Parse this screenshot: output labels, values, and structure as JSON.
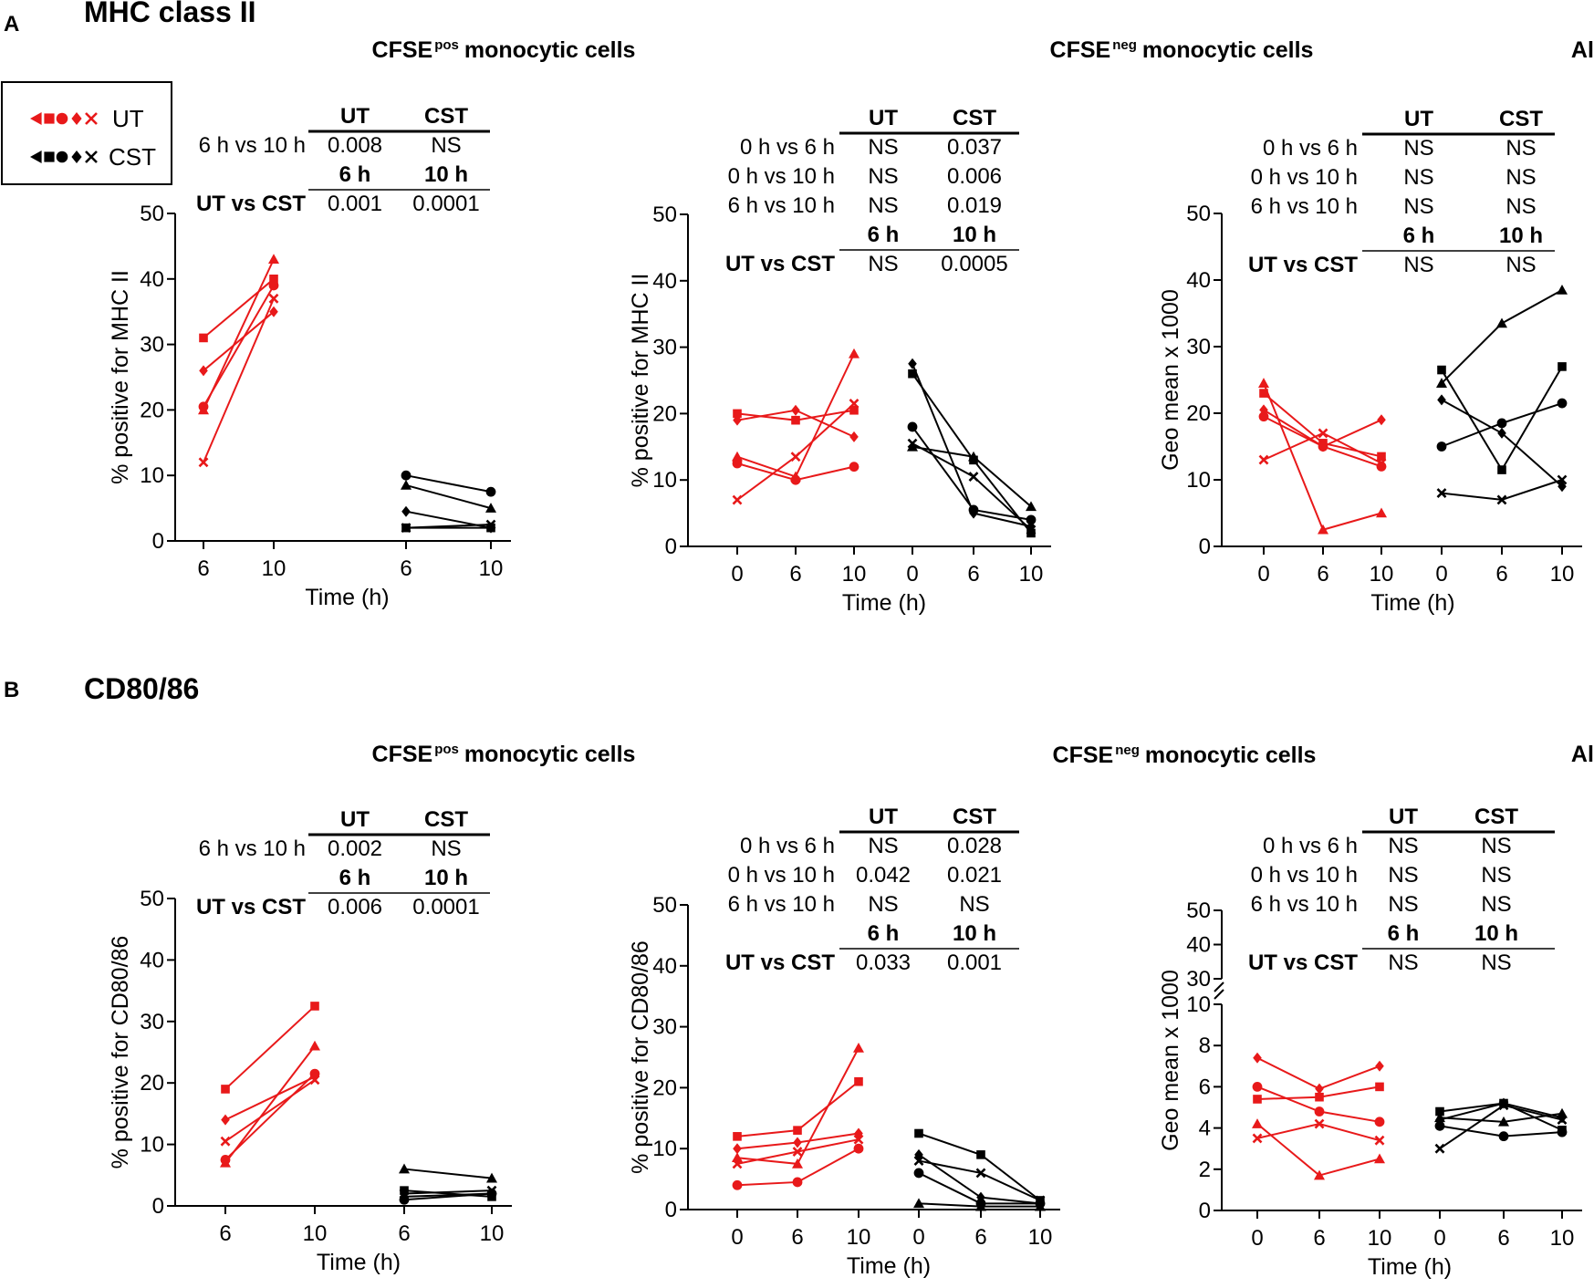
{
  "panels": {
    "A": {
      "letter": "A",
      "title": "MHC class II"
    },
    "B": {
      "letter": "B",
      "title": "CD80/86"
    }
  },
  "legend": {
    "items": [
      {
        "label": "UT",
        "symbols": [
          "triangle",
          "square",
          "circle",
          "diamond",
          "x"
        ],
        "color": "#e8191a"
      },
      {
        "label": "CST",
        "symbols": [
          "triangle",
          "square",
          "circle",
          "diamond",
          "x"
        ],
        "color": "#000000"
      }
    ]
  },
  "colors": {
    "UT": "#e8191a",
    "CST": "#000000"
  },
  "chart_data": [
    {
      "id": "A1",
      "type": "line",
      "panel": "A",
      "title": "CFSE",
      "title_sup": "pos",
      "title_rest": "monocytic cells",
      "ylabel": "% positive for MHC II",
      "xlabel": "Time (h)",
      "ylim": [
        0,
        50
      ],
      "yticks": [
        0,
        10,
        20,
        30,
        40,
        50
      ],
      "groups": [
        {
          "name": "UT",
          "color": "#e8191a",
          "x": [
            6,
            10
          ],
          "series": [
            {
              "marker": "triangle",
              "values": [
                20,
                43
              ]
            },
            {
              "marker": "square",
              "values": [
                31,
                40
              ]
            },
            {
              "marker": "circle",
              "values": [
                20.5,
                39
              ]
            },
            {
              "marker": "diamond",
              "values": [
                26,
                35
              ]
            },
            {
              "marker": "x",
              "values": [
                12,
                37
              ]
            }
          ]
        },
        {
          "name": "CST",
          "color": "#000000",
          "x": [
            6,
            10
          ],
          "series": [
            {
              "marker": "triangle",
              "values": [
                8.5,
                5
              ]
            },
            {
              "marker": "square",
              "values": [
                2,
                2
              ]
            },
            {
              "marker": "circle",
              "values": [
                10,
                7.5
              ]
            },
            {
              "marker": "diamond",
              "values": [
                4.5,
                2
              ]
            },
            {
              "marker": "x",
              "values": [
                2,
                2.5
              ]
            }
          ]
        }
      ],
      "stats": {
        "header": [
          "UT",
          "CST"
        ],
        "rows": [
          {
            "label": "6 h vs 10 h",
            "values": [
              "0.008",
              "NS"
            ]
          }
        ],
        "header2": [
          "6 h",
          "10 h"
        ],
        "rows2": [
          {
            "label": "UT vs CST",
            "values": [
              "0.001",
              "0.0001"
            ]
          }
        ]
      }
    },
    {
      "id": "A2",
      "type": "line",
      "panel": "A",
      "title": "CFSE",
      "title_sup": "neg",
      "title_rest": "monocytic cells",
      "ylabel": "% positive for MHC II",
      "xlabel": "Time (h)",
      "ylim": [
        0,
        50
      ],
      "yticks": [
        0,
        10,
        20,
        30,
        40,
        50
      ],
      "groups": [
        {
          "name": "UT",
          "color": "#e8191a",
          "x": [
            0,
            6,
            10
          ],
          "series": [
            {
              "marker": "triangle",
              "values": [
                13.5,
                10.5,
                29
              ]
            },
            {
              "marker": "square",
              "values": [
                20,
                19,
                20.5
              ]
            },
            {
              "marker": "circle",
              "values": [
                12.5,
                10,
                12
              ]
            },
            {
              "marker": "diamond",
              "values": [
                19,
                20.5,
                16.5
              ]
            },
            {
              "marker": "x",
              "values": [
                7,
                13.5,
                21.5
              ]
            }
          ]
        },
        {
          "name": "CST",
          "color": "#000000",
          "x": [
            0,
            6,
            10
          ],
          "series": [
            {
              "marker": "triangle",
              "values": [
                15,
                13.5,
                6
              ]
            },
            {
              "marker": "square",
              "values": [
                26,
                13,
                2
              ]
            },
            {
              "marker": "circle",
              "values": [
                18,
                5.5,
                4
              ]
            },
            {
              "marker": "diamond",
              "values": [
                27.5,
                5,
                3
              ]
            },
            {
              "marker": "x",
              "values": [
                15.5,
                10.5,
                2.5
              ]
            }
          ]
        }
      ],
      "stats": {
        "header": [
          "UT",
          "CST"
        ],
        "rows": [
          {
            "label": "0 h vs 6 h",
            "values": [
              "NS",
              "0.037"
            ]
          },
          {
            "label": "0 h vs 10 h",
            "values": [
              "NS",
              "0.006"
            ]
          },
          {
            "label": "6 h vs 10 h",
            "values": [
              "NS",
              "0.019"
            ]
          }
        ],
        "header2": [
          "6 h",
          "10 h"
        ],
        "rows2": [
          {
            "label": "UT vs CST",
            "values": [
              "NS",
              "0.0005"
            ]
          }
        ]
      }
    },
    {
      "id": "A3",
      "type": "line",
      "panel": "A",
      "title": "Alveolar macrophages",
      "title_sup": "",
      "title_rest": "",
      "ylabel": "Geo mean x 1000",
      "xlabel": "Time (h)",
      "ylim": [
        0,
        50
      ],
      "yticks": [
        0,
        10,
        20,
        30,
        40,
        50
      ],
      "groups": [
        {
          "name": "UT",
          "color": "#e8191a",
          "x": [
            0,
            6,
            10
          ],
          "series": [
            {
              "marker": "triangle",
              "values": [
                24.5,
                2.5,
                5
              ]
            },
            {
              "marker": "square",
              "values": [
                23,
                15.5,
                13.5
              ]
            },
            {
              "marker": "circle",
              "values": [
                19.5,
                15,
                12
              ]
            },
            {
              "marker": "diamond",
              "values": [
                20.5,
                15,
                19
              ]
            },
            {
              "marker": "x",
              "values": [
                13,
                17,
                12.5
              ]
            }
          ]
        },
        {
          "name": "CST",
          "color": "#000000",
          "x": [
            0,
            6,
            10
          ],
          "series": [
            {
              "marker": "triangle",
              "values": [
                24.5,
                33.5,
                38.5
              ]
            },
            {
              "marker": "square",
              "values": [
                26.5,
                11.5,
                27
              ]
            },
            {
              "marker": "circle",
              "values": [
                15,
                18.5,
                21.5
              ]
            },
            {
              "marker": "diamond",
              "values": [
                22,
                17,
                9
              ]
            },
            {
              "marker": "x",
              "values": [
                8,
                7,
                10
              ]
            }
          ]
        }
      ],
      "stats": {
        "header": [
          "UT",
          "CST"
        ],
        "rows": [
          {
            "label": "0 h vs 6 h",
            "values": [
              "NS",
              "NS"
            ]
          },
          {
            "label": "0 h vs 10 h",
            "values": [
              "NS",
              "NS"
            ]
          },
          {
            "label": "6 h vs 10 h",
            "values": [
              "NS",
              "NS"
            ]
          }
        ],
        "header2": [
          "6 h",
          "10 h"
        ],
        "rows2": [
          {
            "label": "UT vs CST",
            "values": [
              "NS",
              "NS"
            ]
          }
        ]
      }
    },
    {
      "id": "B1",
      "type": "line",
      "panel": "B",
      "title": "CFSE",
      "title_sup": "pos",
      "title_rest": "monocytic cells",
      "ylabel": "% positive for CD80/86",
      "xlabel": "Time (h)",
      "ylim": [
        0,
        50
      ],
      "yticks": [
        0,
        10,
        20,
        30,
        40,
        50
      ],
      "groups": [
        {
          "name": "UT",
          "color": "#e8191a",
          "x": [
            6,
            10
          ],
          "series": [
            {
              "marker": "triangle",
              "values": [
                7,
                26
              ]
            },
            {
              "marker": "square",
              "values": [
                19,
                32.5
              ]
            },
            {
              "marker": "circle",
              "values": [
                7.5,
                21.5
              ]
            },
            {
              "marker": "diamond",
              "values": [
                14,
                21
              ]
            },
            {
              "marker": "x",
              "values": [
                10.5,
                20.5
              ]
            }
          ]
        },
        {
          "name": "CST",
          "color": "#000000",
          "x": [
            6,
            10
          ],
          "series": [
            {
              "marker": "triangle",
              "values": [
                6,
                4.5
              ]
            },
            {
              "marker": "square",
              "values": [
                2.5,
                1.5
              ]
            },
            {
              "marker": "circle",
              "values": [
                1,
                2
              ]
            },
            {
              "marker": "diamond",
              "values": [
                1.5,
                2
              ]
            },
            {
              "marker": "x",
              "values": [
                2,
                2.5
              ]
            }
          ]
        }
      ],
      "stats": {
        "header": [
          "UT",
          "CST"
        ],
        "rows": [
          {
            "label": "6 h vs 10 h",
            "values": [
              "0.002",
              "NS"
            ]
          }
        ],
        "header2": [
          "6 h",
          "10 h"
        ],
        "rows2": [
          {
            "label": "UT vs CST",
            "values": [
              "0.006",
              "0.0001"
            ]
          }
        ]
      }
    },
    {
      "id": "B2",
      "type": "line",
      "panel": "B",
      "title": "CFSE",
      "title_sup": "neg",
      "title_rest": "monocytic cells",
      "ylabel": "% positive for CD80/86",
      "xlabel": "Time (h)",
      "ylim": [
        0,
        50
      ],
      "yticks": [
        0,
        10,
        20,
        30,
        40,
        50
      ],
      "groups": [
        {
          "name": "UT",
          "color": "#e8191a",
          "x": [
            0,
            6,
            10
          ],
          "series": [
            {
              "marker": "triangle",
              "values": [
                8.5,
                7.5,
                26.5
              ]
            },
            {
              "marker": "square",
              "values": [
                12,
                13,
                21
              ]
            },
            {
              "marker": "circle",
              "values": [
                4,
                4.5,
                10
              ]
            },
            {
              "marker": "diamond",
              "values": [
                10,
                11,
                12.5
              ]
            },
            {
              "marker": "x",
              "values": [
                7.5,
                9.5,
                11.5
              ]
            }
          ]
        },
        {
          "name": "CST",
          "color": "#000000",
          "x": [
            0,
            6,
            10
          ],
          "series": [
            {
              "marker": "triangle",
              "values": [
                1,
                0.5,
                0.5
              ]
            },
            {
              "marker": "square",
              "values": [
                12.5,
                9,
                1.5
              ]
            },
            {
              "marker": "circle",
              "values": [
                6,
                1,
                1
              ]
            },
            {
              "marker": "diamond",
              "values": [
                9,
                2,
                1
              ]
            },
            {
              "marker": "x",
              "values": [
                8,
                6,
                1.5
              ]
            }
          ]
        }
      ],
      "stats": {
        "header": [
          "UT",
          "CST"
        ],
        "rows": [
          {
            "label": "0 h vs 6 h",
            "values": [
              "NS",
              "0.028"
            ]
          },
          {
            "label": "0 h vs 10 h",
            "values": [
              "0.042",
              "0.021"
            ]
          },
          {
            "label": "6 h vs 10 h",
            "values": [
              "NS",
              "NS"
            ]
          }
        ],
        "header2": [
          "6 h",
          "10 h"
        ],
        "rows2": [
          {
            "label": "UT vs CST",
            "values": [
              "0.033",
              "0.001"
            ]
          }
        ]
      }
    },
    {
      "id": "B3",
      "type": "line",
      "panel": "B",
      "title": "Alveolar macrophages",
      "title_sup": "",
      "title_rest": "",
      "ylabel": "Geo mean x 1000",
      "xlabel": "Time (h)",
      "ylim": [
        0,
        10
      ],
      "yticks": [
        0,
        2,
        4,
        6,
        8,
        10
      ],
      "upper_ylim": [
        30,
        50
      ],
      "upper_yticks": [
        30,
        40,
        50
      ],
      "axis_break": true,
      "groups": [
        {
          "name": "UT",
          "color": "#e8191a",
          "x": [
            0,
            6,
            10
          ],
          "series": [
            {
              "marker": "triangle",
              "values": [
                4.2,
                1.7,
                2.5
              ]
            },
            {
              "marker": "square",
              "values": [
                5.4,
                5.5,
                6
              ]
            },
            {
              "marker": "circle",
              "values": [
                6,
                4.8,
                4.3
              ]
            },
            {
              "marker": "diamond",
              "values": [
                7.4,
                5.9,
                7
              ]
            },
            {
              "marker": "x",
              "values": [
                3.5,
                4.2,
                3.4
              ]
            }
          ]
        },
        {
          "name": "CST",
          "color": "#000000",
          "x": [
            0,
            6,
            10
          ],
          "series": [
            {
              "marker": "triangle",
              "values": [
                4.5,
                4.3,
                4.7
              ]
            },
            {
              "marker": "square",
              "values": [
                4.8,
                5.2,
                3.9
              ]
            },
            {
              "marker": "circle",
              "values": [
                4.1,
                3.6,
                3.8
              ]
            },
            {
              "marker": "diamond",
              "values": [
                4.4,
                5.2,
                4.5
              ]
            },
            {
              "marker": "x",
              "values": [
                3,
                5.1,
                4.4
              ]
            }
          ]
        }
      ],
      "stats": {
        "header": [
          "UT",
          "CST"
        ],
        "rows": [
          {
            "label": "0 h vs 6 h",
            "values": [
              "NS",
              "NS"
            ]
          },
          {
            "label": "0 h vs 10 h",
            "values": [
              "NS",
              "NS"
            ]
          },
          {
            "label": "6 h vs 10 h",
            "values": [
              "NS",
              "NS"
            ]
          }
        ],
        "header2": [
          "6 h",
          "10 h"
        ],
        "rows2": [
          {
            "label": "UT vs CST",
            "values": [
              "NS",
              "NS"
            ]
          }
        ]
      }
    }
  ]
}
